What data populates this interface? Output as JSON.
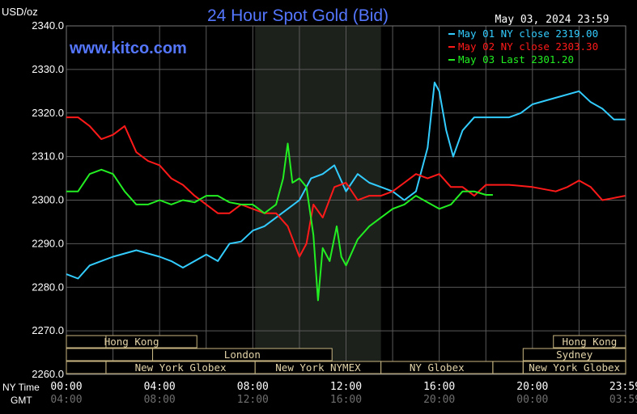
{
  "chart_data": {
    "type": "line",
    "title": "24 Hour Spot Gold (Bid)",
    "unit_label": "USD/oz",
    "watermark": "www.kitco.com",
    "timestamp": "May 03, 2024 23:59",
    "ylim": [
      2260,
      2340
    ],
    "yticks": [
      "2340.0",
      "2330.0",
      "2320.0",
      "2310.0",
      "2300.0",
      "2290.0",
      "2280.0",
      "2270.0",
      "2260.0"
    ],
    "ny_time_label": "NY Time",
    "gmt_label": "GMT",
    "ny_time_ticks": [
      "00:00",
      "04:00",
      "08:00",
      "12:00",
      "16:00",
      "20:00",
      "23:59"
    ],
    "gmt_ticks": [
      "04:00",
      "08:00",
      "12:00",
      "16:00",
      "20:00",
      "00:00",
      "03:59"
    ],
    "legend": [
      {
        "text": "May 01 NY close 2319.00",
        "color": "#33ccff"
      },
      {
        "text": "May 02 NY close 2303.30",
        "color": "#ff1a1a"
      },
      {
        "text": "May 03 Last 2301.20",
        "color": "#22ee22"
      }
    ],
    "sessions": [
      {
        "label": "Hong Kong",
        "row": 0
      },
      {
        "label": "London",
        "row": 1
      },
      {
        "label": "New York Globex",
        "row": 2
      },
      {
        "label": "New York NYMEX",
        "row": 2
      },
      {
        "label": "NY Globex",
        "row": 2
      },
      {
        "label": "Hong Kong",
        "row": 0
      },
      {
        "label": "Sydney",
        "row": 1
      },
      {
        "label": "New York Globex",
        "row": 2
      }
    ],
    "series": [
      {
        "name": "May 01",
        "color": "#33ccff",
        "points": [
          [
            0,
            2283
          ],
          [
            0.5,
            2282
          ],
          [
            1,
            2285
          ],
          [
            2,
            2287
          ],
          [
            3,
            2288.5
          ],
          [
            4,
            2287
          ],
          [
            4.5,
            2286
          ],
          [
            5,
            2284.5
          ],
          [
            6,
            2287.5
          ],
          [
            6.5,
            2286
          ],
          [
            7,
            2290
          ],
          [
            7.5,
            2290.5
          ],
          [
            8,
            2293
          ],
          [
            8.5,
            2294
          ],
          [
            9,
            2296
          ],
          [
            9.5,
            2298
          ],
          [
            10,
            2300
          ],
          [
            10.5,
            2305
          ],
          [
            11,
            2306
          ],
          [
            11.5,
            2308
          ],
          [
            12,
            2302
          ],
          [
            12.5,
            2306
          ],
          [
            13,
            2304
          ],
          [
            13.5,
            2303
          ],
          [
            14,
            2302
          ],
          [
            14.5,
            2300
          ],
          [
            15,
            2302
          ],
          [
            15.5,
            2312
          ],
          [
            15.8,
            2327
          ],
          [
            16,
            2325
          ],
          [
            16.3,
            2316
          ],
          [
            16.6,
            2310
          ],
          [
            17,
            2316
          ],
          [
            17.5,
            2319
          ],
          [
            18,
            2319
          ],
          [
            19,
            2319
          ],
          [
            19.5,
            2320
          ],
          [
            20,
            2322
          ],
          [
            21,
            2323.5
          ],
          [
            22,
            2325
          ],
          [
            22.5,
            2322.5
          ],
          [
            23,
            2321
          ],
          [
            23.5,
            2318.5
          ],
          [
            23.98,
            2318.5
          ]
        ]
      },
      {
        "name": "May 02",
        "color": "#ff1a1a",
        "points": [
          [
            0,
            2319
          ],
          [
            0.5,
            2319
          ],
          [
            1,
            2317
          ],
          [
            1.5,
            2314
          ],
          [
            2,
            2315
          ],
          [
            2.5,
            2317
          ],
          [
            3,
            2311
          ],
          [
            3.5,
            2309
          ],
          [
            4,
            2308
          ],
          [
            4.5,
            2305
          ],
          [
            5,
            2303.5
          ],
          [
            5.5,
            2301
          ],
          [
            6,
            2299
          ],
          [
            6.5,
            2297
          ],
          [
            7,
            2297
          ],
          [
            7.5,
            2299
          ],
          [
            8,
            2298
          ],
          [
            8.5,
            2297
          ],
          [
            9,
            2297
          ],
          [
            9.5,
            2294
          ],
          [
            10,
            2287
          ],
          [
            10.3,
            2290
          ],
          [
            10.6,
            2299
          ],
          [
            11,
            2296
          ],
          [
            11.5,
            2303
          ],
          [
            12,
            2304
          ],
          [
            12.5,
            2300
          ],
          [
            13,
            2301
          ],
          [
            13.5,
            2301
          ],
          [
            14,
            2302
          ],
          [
            14.5,
            2304
          ],
          [
            15,
            2306
          ],
          [
            15.5,
            2305
          ],
          [
            16,
            2306
          ],
          [
            16.5,
            2303
          ],
          [
            17,
            2303
          ],
          [
            17.5,
            2301
          ],
          [
            18,
            2303.5
          ],
          [
            19,
            2303.5
          ],
          [
            20,
            2303
          ],
          [
            21,
            2302
          ],
          [
            21.5,
            2303
          ],
          [
            22,
            2304.5
          ],
          [
            22.5,
            2303
          ],
          [
            23,
            2300
          ],
          [
            23.5,
            2300.5
          ],
          [
            23.98,
            2301
          ]
        ]
      },
      {
        "name": "May 03",
        "color": "#22ee22",
        "points": [
          [
            0,
            2302
          ],
          [
            0.5,
            2302
          ],
          [
            1,
            2306
          ],
          [
            1.5,
            2307
          ],
          [
            2,
            2306
          ],
          [
            2.5,
            2302
          ],
          [
            3,
            2299
          ],
          [
            3.5,
            2299
          ],
          [
            4,
            2300
          ],
          [
            4.5,
            2299
          ],
          [
            5,
            2300
          ],
          [
            5.5,
            2299.5
          ],
          [
            6,
            2301
          ],
          [
            6.5,
            2301
          ],
          [
            7,
            2299.5
          ],
          [
            7.5,
            2299
          ],
          [
            8,
            2299
          ],
          [
            8.5,
            2297
          ],
          [
            9,
            2299
          ],
          [
            9.3,
            2305
          ],
          [
            9.5,
            2313
          ],
          [
            9.7,
            2304
          ],
          [
            10,
            2305
          ],
          [
            10.3,
            2303
          ],
          [
            10.6,
            2292
          ],
          [
            10.8,
            2277
          ],
          [
            11,
            2289
          ],
          [
            11.3,
            2286
          ],
          [
            11.6,
            2294
          ],
          [
            11.8,
            2287
          ],
          [
            12,
            2285
          ],
          [
            12.5,
            2291
          ],
          [
            13,
            2294
          ],
          [
            13.5,
            2296
          ],
          [
            14,
            2298
          ],
          [
            14.5,
            2299
          ],
          [
            15,
            2301
          ],
          [
            15.5,
            2299.5
          ],
          [
            16,
            2298
          ],
          [
            16.5,
            2299
          ],
          [
            17,
            2302
          ],
          [
            17.5,
            2302
          ],
          [
            18,
            2301.2
          ],
          [
            18.3,
            2301.2
          ]
        ]
      }
    ],
    "hour_gridlines": [
      0,
      2,
      4,
      6,
      8,
      10,
      12,
      14,
      16,
      18,
      20,
      22,
      24
    ]
  }
}
